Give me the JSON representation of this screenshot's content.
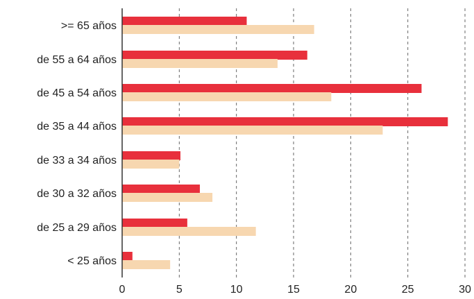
{
  "chart_data": {
    "type": "bar",
    "orientation": "horizontal",
    "categories": [
      ">= 65 años",
      "de 55 a 64 años",
      "de 45 a 54 años",
      "de 35 a 44 años",
      "de 33 a 34 años",
      "de 30 a 32 años",
      "de 25 a 29 años",
      "< 25 años"
    ],
    "series": [
      {
        "values": [
          10.9,
          16.2,
          26.2,
          28.5,
          5.1,
          6.8,
          5.7,
          0.9
        ],
        "color": "#e8303c"
      },
      {
        "values": [
          16.8,
          13.6,
          18.3,
          22.8,
          5.0,
          7.9,
          11.7,
          4.2
        ],
        "color": "#f7d7b0"
      }
    ],
    "xticks": [
      "0",
      "5",
      "10",
      "15",
      "20",
      "25",
      "30"
    ],
    "xlim": [
      0,
      30
    ],
    "grid": "vertical dashed",
    "legend": "none"
  }
}
